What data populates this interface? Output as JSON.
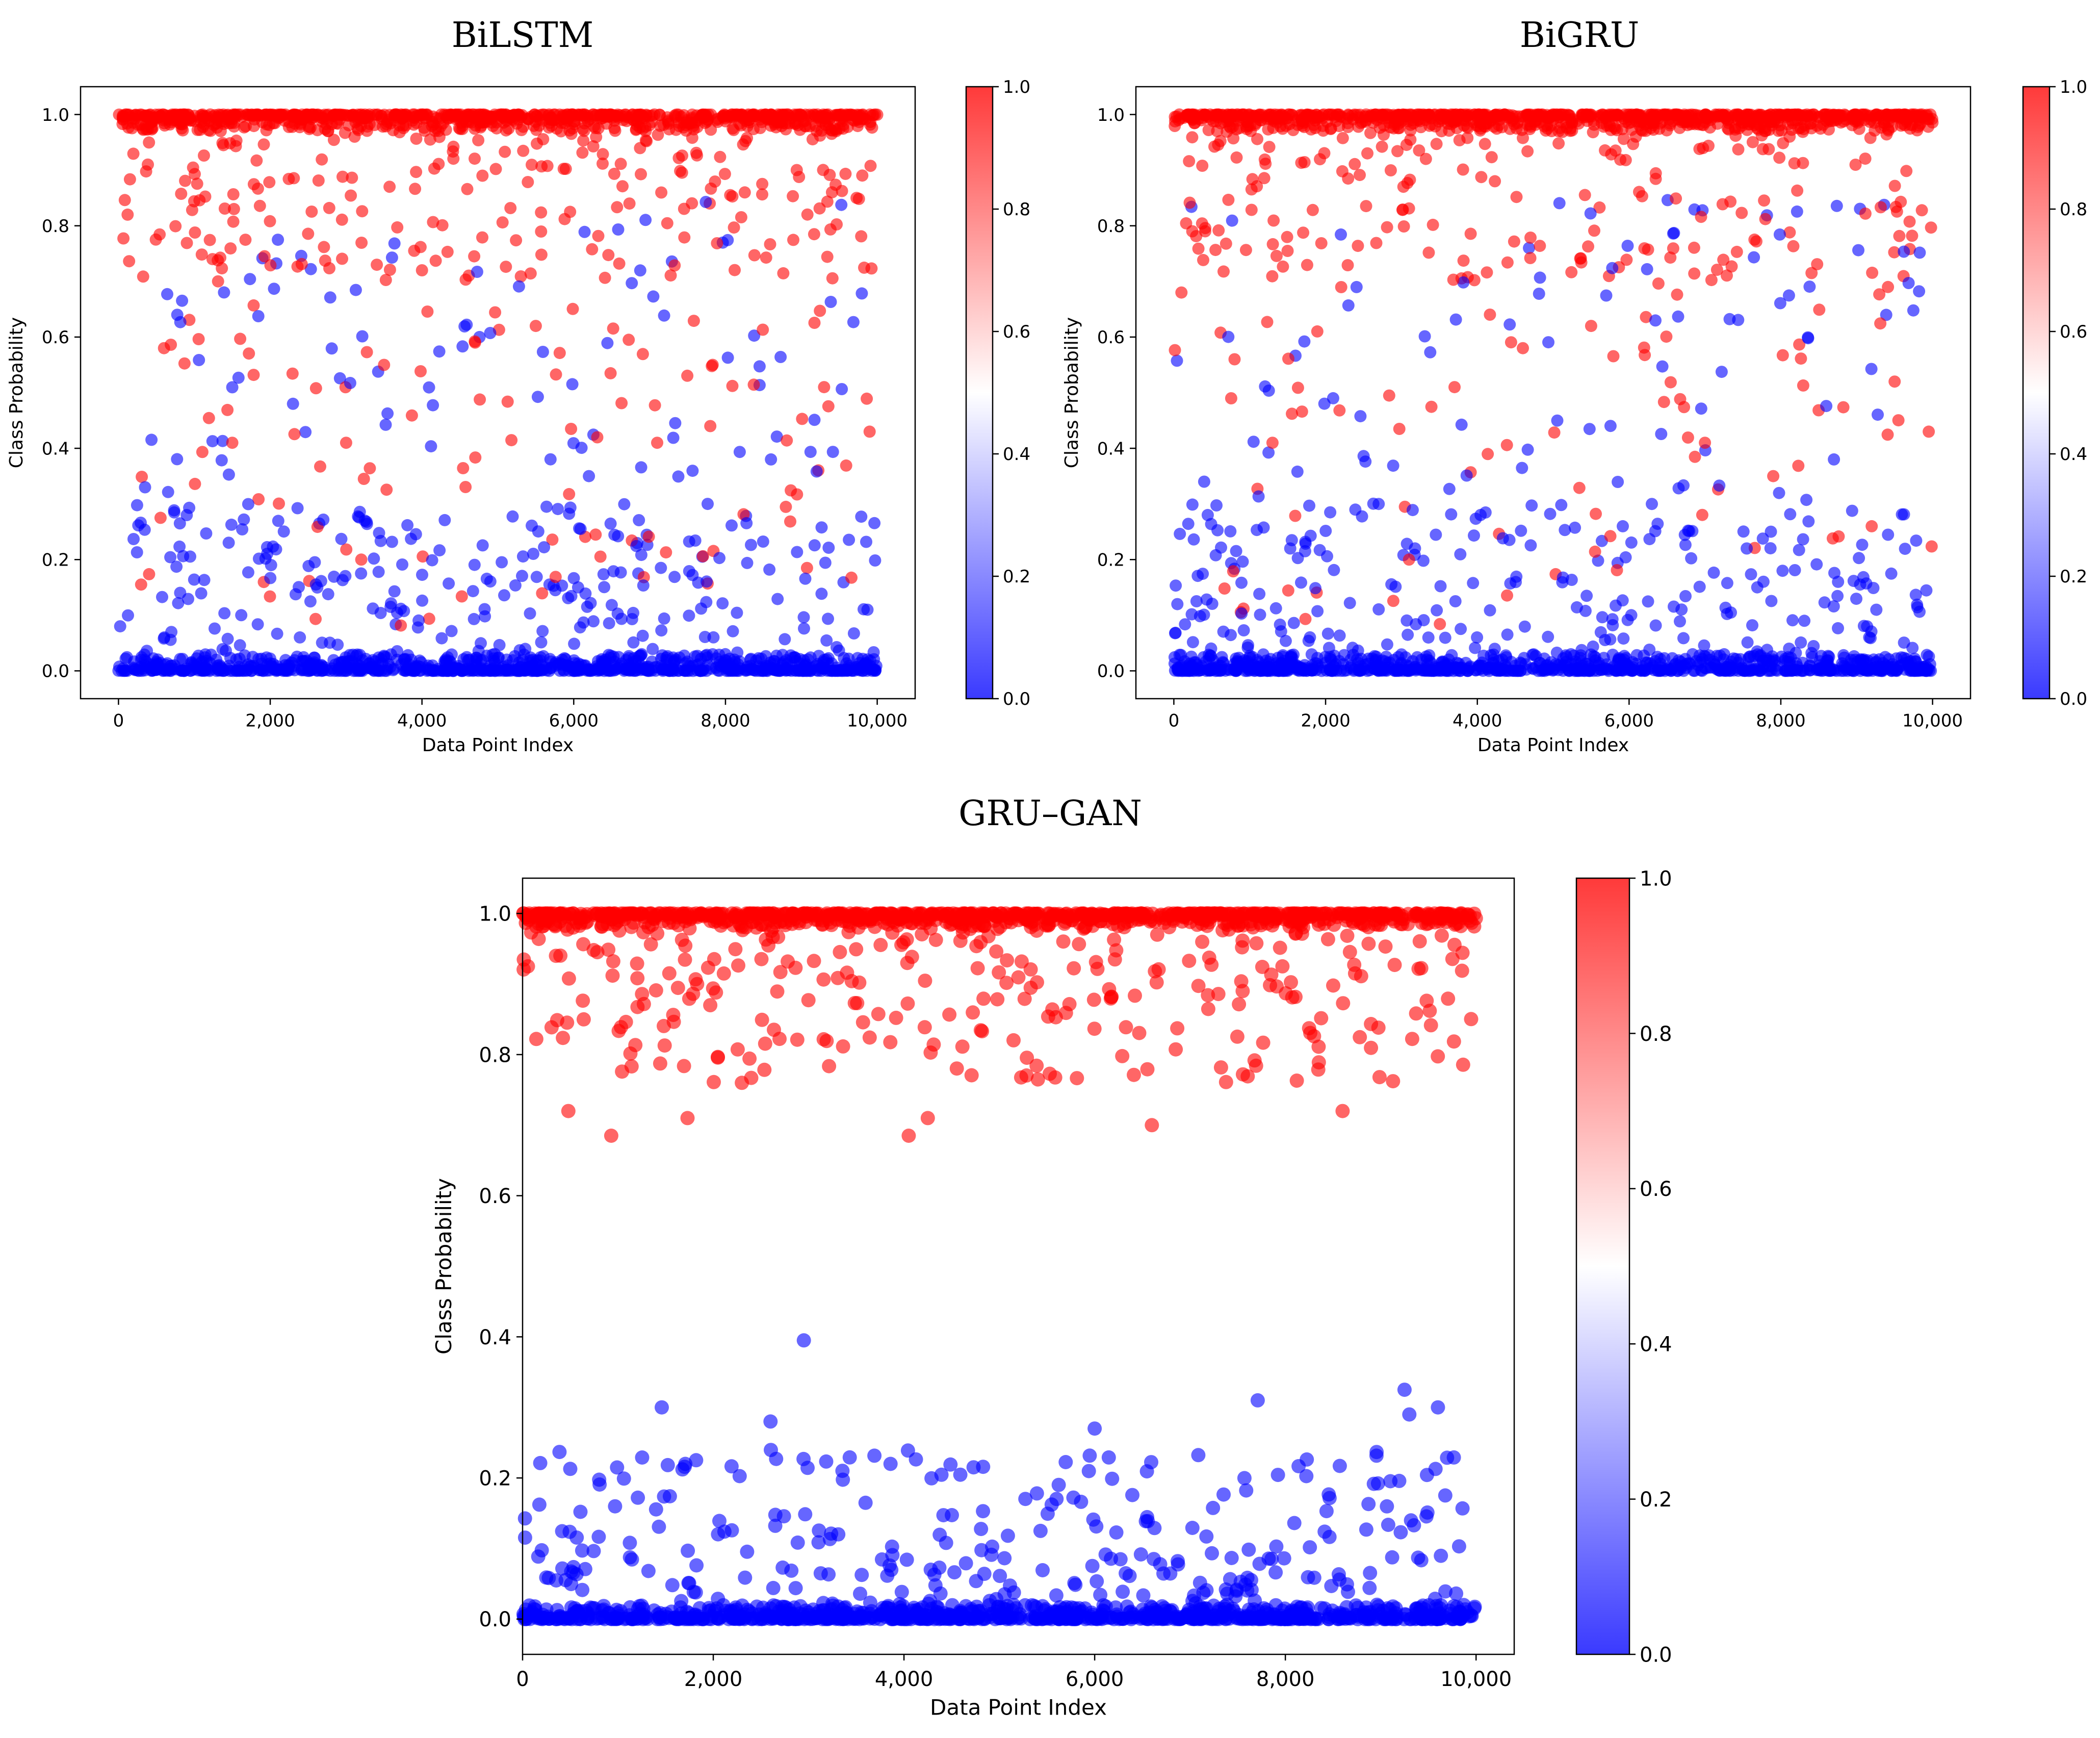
{
  "colors": {
    "class_high": "#ff0000",
    "class_low": "#0000ff",
    "mid": "#ffffff"
  },
  "chart_data": [
    {
      "id": "bilstm",
      "type": "scatter",
      "title": "BiLSTM",
      "xlabel": "Data Point Index",
      "ylabel": "Class Probability",
      "xlim": [
        -500,
        10500
      ],
      "ylim": [
        -0.05,
        1.05
      ],
      "x_ticks": [
        0,
        2000,
        4000,
        6000,
        8000,
        10000
      ],
      "x_tick_labels": [
        "0",
        "2,000",
        "4,000",
        "6,000",
        "8,000",
        "10,000"
      ],
      "y_ticks": [
        0.0,
        0.2,
        0.4,
        0.6,
        0.8,
        1.0
      ],
      "y_tick_labels": [
        "0.0",
        "0.2",
        "0.4",
        "0.6",
        "0.8",
        "1.0"
      ],
      "colorbar": {
        "range": [
          0.0,
          1.0
        ],
        "ticks": [
          "0.0",
          "0.2",
          "0.4",
          "0.6",
          "0.8",
          "1.0"
        ],
        "colormap": "bwr"
      },
      "grid": false,
      "n_points": 10000,
      "marker_alpha": 0.6,
      "samples": [
        {
          "x": 120,
          "y": 0.82
        },
        {
          "x": 350,
          "y": 0.33
        },
        {
          "x": 600,
          "y": 0.58
        },
        {
          "x": 900,
          "y": 0.28
        },
        {
          "x": 1500,
          "y": 0.41
        },
        {
          "x": 2300,
          "y": 0.48
        },
        {
          "x": 3000,
          "y": 0.41
        },
        {
          "x": 3200,
          "y": 0.2
        },
        {
          "x": 3500,
          "y": 0.55
        },
        {
          "x": 4000,
          "y": 0.72
        },
        {
          "x": 4700,
          "y": 0.59
        },
        {
          "x": 5500,
          "y": 0.62
        },
        {
          "x": 6200,
          "y": 0.35
        },
        {
          "x": 7100,
          "y": 0.41
        },
        {
          "x": 7800,
          "y": 0.44
        },
        {
          "x": 8600,
          "y": 0.38
        },
        {
          "x": 9300,
          "y": 0.51
        },
        {
          "x": 9900,
          "y": 0.43
        }
      ]
    },
    {
      "id": "bigru",
      "type": "scatter",
      "title": "BiGRU",
      "xlabel": "Data Point Index",
      "ylabel": "Class Probability",
      "xlim": [
        -500,
        10500
      ],
      "ylim": [
        -0.05,
        1.05
      ],
      "x_ticks": [
        0,
        2000,
        4000,
        6000,
        8000,
        10000
      ],
      "x_tick_labels": [
        "0",
        "2,000",
        "4,000",
        "6,000",
        "8,000",
        "10,000"
      ],
      "y_ticks": [
        0.0,
        0.2,
        0.4,
        0.6,
        0.8,
        1.0
      ],
      "y_tick_labels": [
        "0.0",
        "0.2",
        "0.4",
        "0.6",
        "0.8",
        "1.0"
      ],
      "colorbar": {
        "range": [
          0.0,
          1.0
        ],
        "ticks": [
          "0.0",
          "0.2",
          "0.4",
          "0.6",
          "0.8",
          "1.0"
        ],
        "colormap": "bwr"
      },
      "grid": false,
      "n_points": 10000,
      "marker_alpha": 0.6,
      "samples": [
        {
          "x": 100,
          "y": 0.68
        },
        {
          "x": 400,
          "y": 0.34
        },
        {
          "x": 800,
          "y": 0.56
        },
        {
          "x": 1300,
          "y": 0.41
        },
        {
          "x": 2100,
          "y": 0.49
        },
        {
          "x": 2700,
          "y": 0.3
        },
        {
          "x": 3100,
          "y": 0.2
        },
        {
          "x": 3700,
          "y": 0.51
        },
        {
          "x": 4600,
          "y": 0.58
        },
        {
          "x": 5500,
          "y": 0.62
        },
        {
          "x": 6300,
          "y": 0.3
        },
        {
          "x": 7000,
          "y": 0.41
        },
        {
          "x": 7900,
          "y": 0.35
        },
        {
          "x": 8700,
          "y": 0.38
        },
        {
          "x": 9500,
          "y": 0.52
        },
        {
          "x": 9950,
          "y": 0.43
        }
      ]
    },
    {
      "id": "grugan",
      "type": "scatter",
      "title": "GRU–GAN",
      "xlabel": "Data Point Index",
      "ylabel": "Class Probability",
      "xlim": [
        0,
        10400
      ],
      "ylim": [
        -0.05,
        1.05
      ],
      "x_ticks": [
        0,
        2000,
        4000,
        6000,
        8000,
        10000
      ],
      "x_tick_labels": [
        "0",
        "2,000",
        "4,000",
        "6,000",
        "8,000",
        "10,000"
      ],
      "y_ticks": [
        0.0,
        0.2,
        0.4,
        0.6,
        0.8,
        1.0
      ],
      "y_tick_labels": [
        "0.0",
        "0.2",
        "0.4",
        "0.6",
        "0.8",
        "1.0"
      ],
      "colorbar": {
        "range": [
          0.0,
          1.0
        ],
        "ticks": [
          "0.0",
          "0.2",
          "0.4",
          "0.6",
          "0.8",
          "1.0"
        ],
        "colormap": "bwr"
      },
      "grid": false,
      "n_points": 10000,
      "marker_alpha": 0.6,
      "samples": [
        {
          "x": 930,
          "y": 0.685
        },
        {
          "x": 480,
          "y": 0.72
        },
        {
          "x": 1730,
          "y": 0.71
        },
        {
          "x": 2300,
          "y": 0.76
        },
        {
          "x": 4050,
          "y": 0.685
        },
        {
          "x": 4250,
          "y": 0.71
        },
        {
          "x": 6600,
          "y": 0.7
        },
        {
          "x": 8600,
          "y": 0.72
        },
        {
          "x": 2950,
          "y": 0.395
        },
        {
          "x": 1460,
          "y": 0.3
        },
        {
          "x": 2600,
          "y": 0.28
        },
        {
          "x": 7710,
          "y": 0.31
        },
        {
          "x": 9250,
          "y": 0.325
        },
        {
          "x": 9600,
          "y": 0.3
        },
        {
          "x": 9300,
          "y": 0.29
        },
        {
          "x": 6000,
          "y": 0.27
        }
      ]
    }
  ]
}
